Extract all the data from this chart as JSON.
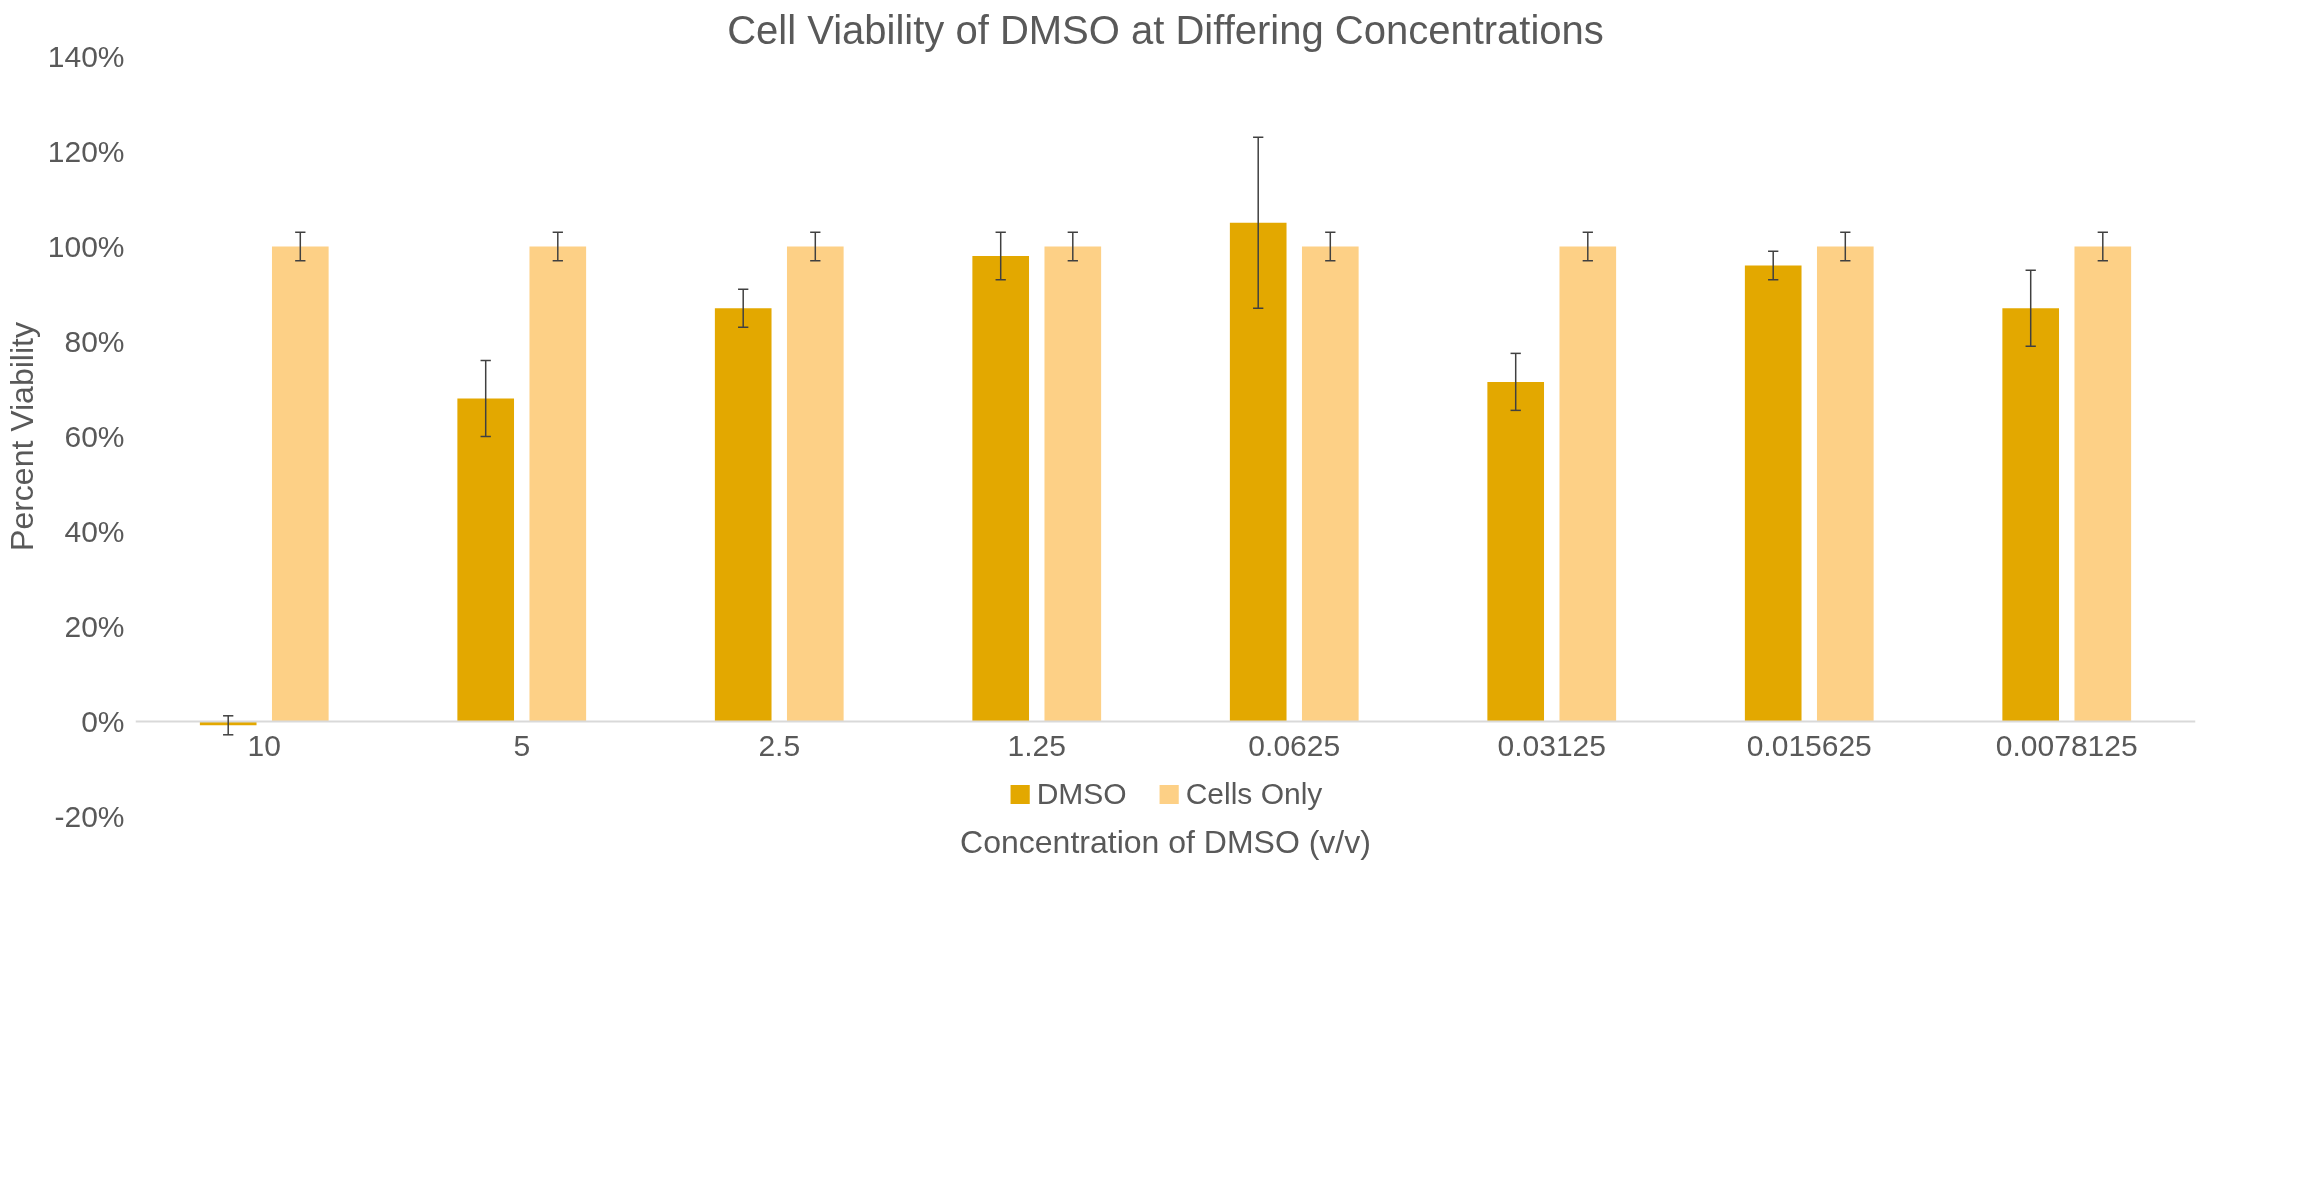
{
  "chart_data": {
    "type": "bar",
    "title": "Cell Viability of DMSO at Differing Concentrations",
    "xlabel": "Concentration of DMSO (v/v)",
    "ylabel": "Percent Viability",
    "categories": [
      "10",
      "5",
      "2.5",
      "1.25",
      "0.0625",
      "0.03125",
      "0.015625",
      "0.0078125"
    ],
    "series": [
      {
        "name": "DMSO",
        "color": "#e3a800",
        "values": [
          -0.8,
          68,
          87,
          98,
          105,
          71.5,
          96,
          87
        ],
        "errors": [
          2,
          8,
          4,
          5,
          18,
          6,
          3,
          8
        ]
      },
      {
        "name": "Cells Only",
        "color": "#fdd086",
        "values": [
          100,
          100,
          100,
          100,
          100,
          100,
          100,
          100
        ],
        "errors": [
          3,
          3,
          3,
          3,
          3,
          3,
          3,
          3
        ]
      }
    ],
    "ylim": [
      -20,
      140
    ],
    "yticks": [
      {
        "value": -20,
        "label": "-20%"
      },
      {
        "value": 0,
        "label": "0%"
      },
      {
        "value": 20,
        "label": "20%"
      },
      {
        "value": 40,
        "label": "40%"
      },
      {
        "value": 60,
        "label": "60%"
      },
      {
        "value": 80,
        "label": "80%"
      },
      {
        "value": 100,
        "label": "100%"
      },
      {
        "value": 120,
        "label": "120%"
      },
      {
        "value": 140,
        "label": "140%"
      }
    ],
    "grid": false,
    "legend": "bottom"
  }
}
